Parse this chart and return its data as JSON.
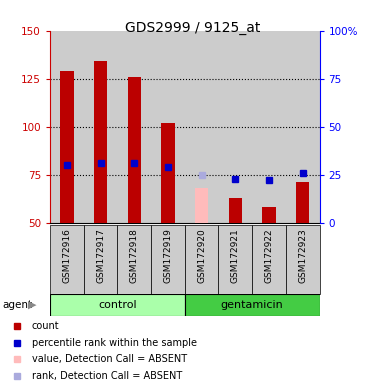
{
  "title": "GDS2999 / 9125_at",
  "samples": [
    "GSM172916",
    "GSM172917",
    "GSM172918",
    "GSM172919",
    "GSM172920",
    "GSM172921",
    "GSM172922",
    "GSM172923"
  ],
  "count_values": [
    129,
    134,
    126,
    102,
    null,
    63,
    58,
    71
  ],
  "count_absent_values": [
    null,
    null,
    null,
    null,
    68,
    null,
    null,
    null
  ],
  "rank_values": [
    80,
    81,
    81,
    79,
    null,
    73,
    72,
    76
  ],
  "rank_absent_values": [
    null,
    null,
    null,
    null,
    75,
    null,
    null,
    null
  ],
  "ylim_left": [
    50,
    150
  ],
  "ylim_right": [
    0,
    100
  ],
  "yticks_left": [
    50,
    75,
    100,
    125,
    150
  ],
  "yticks_right": [
    0,
    25,
    50,
    75,
    100
  ],
  "yticklabels_right": [
    "0",
    "25",
    "50",
    "75",
    "100%"
  ],
  "bar_color": "#bb0000",
  "bar_absent_color": "#ffbbbb",
  "rank_color": "#0000cc",
  "rank_absent_color": "#aaaadd",
  "control_bg": "#aaffaa",
  "gentamicin_bg": "#44cc44",
  "sample_bg": "#cccccc",
  "agent_label": "agent",
  "legend_items": [
    {
      "label": "count",
      "color": "#bb0000"
    },
    {
      "label": "percentile rank within the sample",
      "color": "#0000cc"
    },
    {
      "label": "value, Detection Call = ABSENT",
      "color": "#ffbbbb"
    },
    {
      "label": "rank, Detection Call = ABSENT",
      "color": "#aaaadd"
    }
  ]
}
